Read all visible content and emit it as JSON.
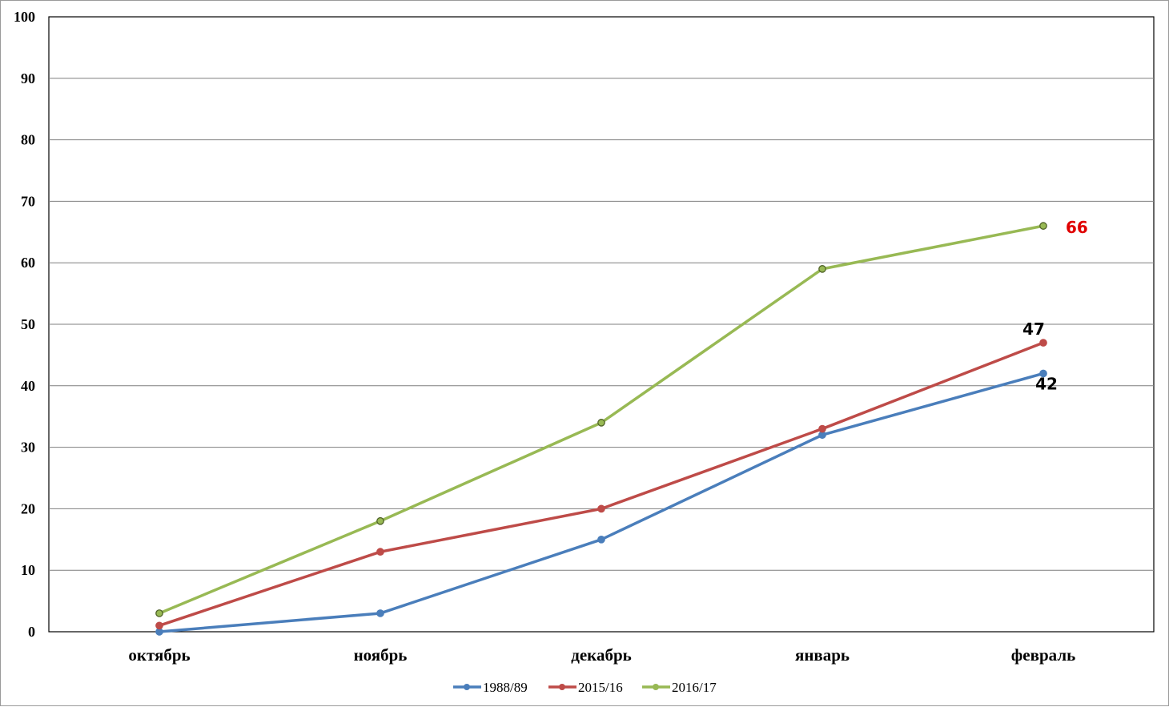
{
  "chart_data": {
    "type": "line",
    "title": "",
    "xlabel": "",
    "ylabel": "",
    "categories": [
      "октябрь",
      "ноябрь",
      "декабрь",
      "январь",
      "февраль"
    ],
    "ylim": [
      0,
      100
    ],
    "yticks": [
      0,
      10,
      20,
      30,
      40,
      50,
      60,
      70,
      80,
      90,
      100
    ],
    "grid": true,
    "legend_position": "bottom",
    "series": [
      {
        "name": "1988/89",
        "color": "#4a7ebb",
        "values": [
          0,
          3,
          15,
          32,
          42
        ]
      },
      {
        "name": "2015/16",
        "color": "#be4b48",
        "values": [
          1,
          13,
          20,
          33,
          47
        ]
      },
      {
        "name": "2016/17",
        "color": "#98b954",
        "values": [
          3,
          18,
          34,
          59,
          66
        ]
      }
    ],
    "annotations": [
      {
        "text": "66",
        "series": "2016/17",
        "category": "февраль",
        "value": 66,
        "color": "#e00000"
      },
      {
        "text": "47",
        "series": "2015/16",
        "category": "февраль",
        "value": 47,
        "color": "#000000"
      },
      {
        "text": "42",
        "series": "1988/89",
        "category": "февраль",
        "value": 42,
        "color": "#000000"
      }
    ]
  }
}
